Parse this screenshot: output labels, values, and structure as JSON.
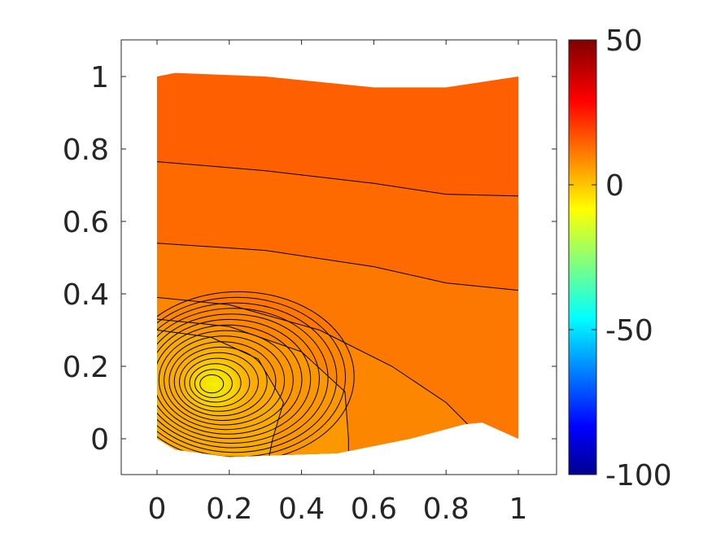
{
  "chart_data": {
    "type": "contour",
    "title": "",
    "xlabel": "",
    "ylabel": "",
    "xlim": [
      -0.1,
      1.1
    ],
    "ylim": [
      -0.1,
      1.1
    ],
    "x_ticks": [
      "0",
      "0.2",
      "0.4",
      "0.6",
      "0.8",
      "1"
    ],
    "y_ticks": [
      "0",
      "0.2",
      "0.4",
      "0.6",
      "0.8",
      "1"
    ],
    "colorbar": {
      "colormap": "jet",
      "range": [
        -100,
        50
      ],
      "ticks": [
        "50",
        "0",
        "-50",
        "-100"
      ]
    },
    "extremum": {
      "x": 0.16,
      "y": 0.15,
      "value": 0
    },
    "field_range_approx": [
      0,
      22
    ],
    "domain_outline": {
      "top": [
        [
          0,
          1.0
        ],
        [
          0.05,
          1.01
        ],
        [
          0.3,
          1.0
        ],
        [
          0.6,
          0.97
        ],
        [
          0.8,
          0.97
        ],
        [
          1.0,
          1.0
        ]
      ],
      "bottom": [
        [
          0,
          0.0
        ],
        [
          0.05,
          -0.03
        ],
        [
          0.2,
          -0.05
        ],
        [
          0.5,
          -0.04
        ],
        [
          0.7,
          0.0
        ],
        [
          0.85,
          0.04
        ],
        [
          0.9,
          0.045
        ],
        [
          1.0,
          0.0
        ]
      ]
    },
    "contour_lines_upper": [
      [
        [
          0,
          0.765
        ],
        [
          0.3,
          0.74
        ],
        [
          0.6,
          0.705
        ],
        [
          0.8,
          0.675
        ],
        [
          1.0,
          0.67
        ]
      ],
      [
        [
          0,
          0.54
        ],
        [
          0.3,
          0.52
        ],
        [
          0.6,
          0.475
        ],
        [
          0.8,
          0.43
        ],
        [
          1.0,
          0.41
        ]
      ]
    ]
  }
}
